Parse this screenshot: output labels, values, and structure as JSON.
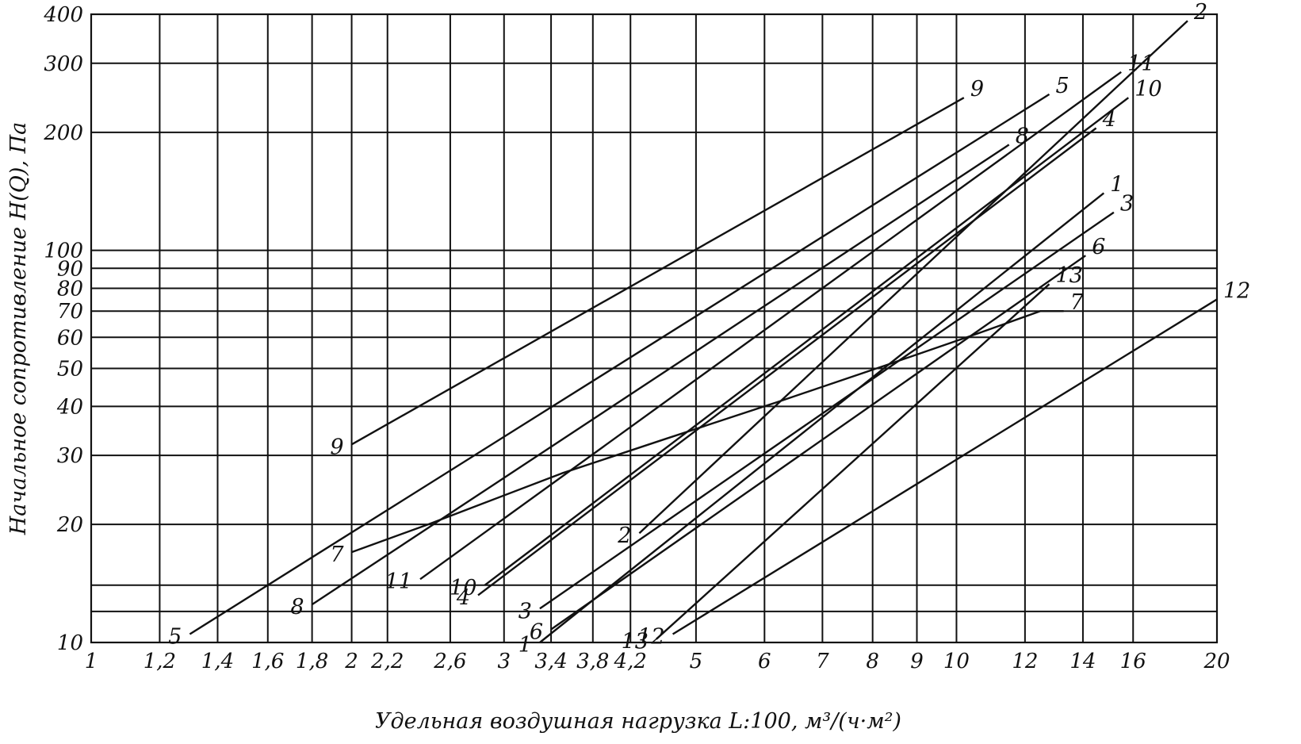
{
  "chart_data": {
    "type": "line",
    "xscale": "log",
    "yscale": "log",
    "xlim": [
      1,
      20
    ],
    "ylim": [
      10,
      400
    ],
    "xlabel": "Удельная воздушная нагрузка L:100, м³/(ч·м²)",
    "ylabel": "Начальное сопротивление H(Q), Па",
    "grid": true,
    "x_ticks": [
      {
        "v": 1,
        "label": "1"
      },
      {
        "v": 1.2,
        "label": "1,2"
      },
      {
        "v": 1.4,
        "label": "1,4"
      },
      {
        "v": 1.6,
        "label": "1,6"
      },
      {
        "v": 1.8,
        "label": "1,8"
      },
      {
        "v": 2,
        "label": "2"
      },
      {
        "v": 2.2,
        "label": "2,2"
      },
      {
        "v": 2.6,
        "label": "2,6"
      },
      {
        "v": 3,
        "label": "3"
      },
      {
        "v": 3.4,
        "label": "3,4"
      },
      {
        "v": 3.8,
        "label": "3,8"
      },
      {
        "v": 4.2,
        "label": "4,2"
      },
      {
        "v": 5,
        "label": "5"
      },
      {
        "v": 6,
        "label": "6"
      },
      {
        "v": 7,
        "label": "7"
      },
      {
        "v": 8,
        "label": "8"
      },
      {
        "v": 9,
        "label": "9"
      },
      {
        "v": 10,
        "label": "10"
      },
      {
        "v": 12,
        "label": "12"
      },
      {
        "v": 14,
        "label": "14"
      },
      {
        "v": 16,
        "label": "16"
      },
      {
        "v": 20,
        "label": "20"
      }
    ],
    "y_ticks": [
      {
        "v": 10,
        "label": "10"
      },
      {
        "v": 20,
        "label": "20"
      },
      {
        "v": 30,
        "label": "30"
      },
      {
        "v": 40,
        "label": "40"
      },
      {
        "v": 50,
        "label": "50"
      },
      {
        "v": 60,
        "label": "60"
      },
      {
        "v": 70,
        "label": "70"
      },
      {
        "v": 80,
        "label": "80"
      },
      {
        "v": 90,
        "label": "90"
      },
      {
        "v": 100,
        "label": "100"
      },
      {
        "v": 200,
        "label": "200"
      },
      {
        "v": 300,
        "label": "300"
      },
      {
        "v": 400,
        "label": "400"
      }
    ],
    "extra_hlines": [
      12,
      14
    ],
    "series": [
      {
        "name": "1",
        "points": [
          [
            3.3,
            10
          ],
          [
            14.8,
            140
          ]
        ],
        "start_label": "1",
        "end_label": "1"
      },
      {
        "name": "2",
        "points": [
          [
            4.3,
            19
          ],
          [
            18.5,
            385
          ]
        ],
        "start_label": "2",
        "end_label": "2"
      },
      {
        "name": "3",
        "points": [
          [
            3.3,
            12.2
          ],
          [
            15.2,
            125
          ]
        ],
        "start_label": "3",
        "end_label": "3"
      },
      {
        "name": "4",
        "points": [
          [
            2.8,
            13.2
          ],
          [
            14.5,
            205
          ]
        ],
        "start_label": "4",
        "end_label": "4"
      },
      {
        "name": "5",
        "points": [
          [
            1.3,
            10.5
          ],
          [
            12.8,
            250
          ]
        ],
        "start_label": "5",
        "end_label": "5"
      },
      {
        "name": "6",
        "points": [
          [
            3.4,
            10.8
          ],
          [
            14.1,
            97
          ]
        ],
        "start_label": "6",
        "end_label": "6"
      },
      {
        "name": "7",
        "points": [
          [
            2.0,
            17
          ],
          [
            2.45,
            20
          ],
          [
            3.5,
            27
          ],
          [
            4.6,
            33
          ],
          [
            6.2,
            41
          ],
          [
            8.3,
            51
          ],
          [
            10.5,
            61
          ],
          [
            12.5,
            70
          ],
          [
            13.3,
            70
          ]
        ],
        "start_label": "7",
        "end_label": "7"
      },
      {
        "name": "8",
        "points": [
          [
            1.8,
            12.5
          ],
          [
            11.5,
            186
          ]
        ],
        "start_label": "8",
        "end_label": "8"
      },
      {
        "name": "9",
        "points": [
          [
            2.0,
            32
          ],
          [
            10.2,
            245
          ]
        ],
        "start_label": "9",
        "end_label": "9"
      },
      {
        "name": "10",
        "points": [
          [
            2.85,
            14
          ],
          [
            15.8,
            245
          ]
        ],
        "start_label": "10",
        "end_label": "10"
      },
      {
        "name": "11",
        "points": [
          [
            2.4,
            14.5
          ],
          [
            15.5,
            285
          ]
        ],
        "start_label": "11",
        "end_label": "11"
      },
      {
        "name": "12",
        "points": [
          [
            4.7,
            10.5
          ],
          [
            20,
            75
          ]
        ],
        "start_label": "12",
        "end_label": "12"
      },
      {
        "name": "13",
        "points": [
          [
            4.5,
            10.2
          ],
          [
            12.8,
            82
          ]
        ],
        "start_label": "13",
        "end_label": "13"
      }
    ]
  }
}
